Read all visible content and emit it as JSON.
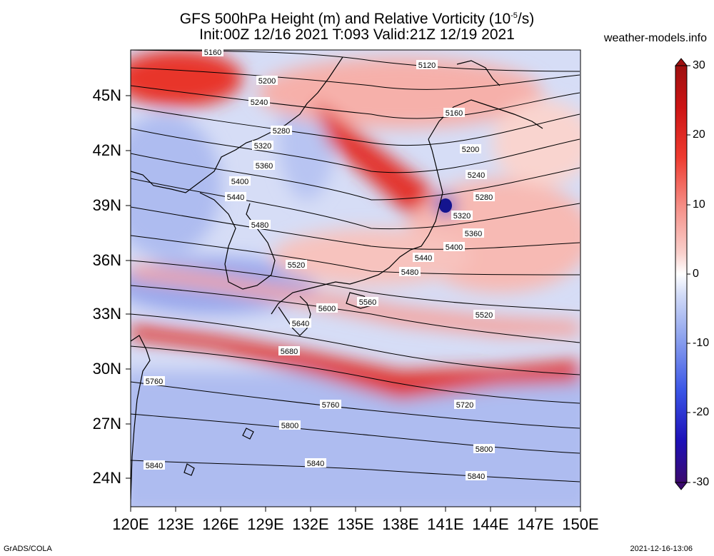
{
  "header": {
    "title_line1": "GFS 500hPa Height (m) and Relative Vorticity (10",
    "title_exp": "-5",
    "title_line1_end": "/s)",
    "title_line2": "Init:00Z 12/16 2021  T:093  Valid:21Z 12/19 2021",
    "site": "weather-models.info"
  },
  "footer": {
    "left": "GrADS/COLA",
    "right": "2021-12-16-13:06"
  },
  "axes": {
    "lat_labels": [
      "45N",
      "42N",
      "39N",
      "36N",
      "33N",
      "30N",
      "27N",
      "24N"
    ],
    "lon_labels": [
      "120E",
      "123E",
      "126E",
      "129E",
      "132E",
      "135E",
      "138E",
      "141E",
      "144E",
      "147E",
      "150E"
    ]
  },
  "colorbar": {
    "labels": [
      "30",
      "20",
      "10",
      "0",
      "-10",
      "-20",
      "-30"
    ],
    "colors": [
      "#3b0a6e",
      "#1d10b8",
      "#3a55e6",
      "#8fa4ee",
      "#d2dbf7",
      "#ffffff",
      "#f9d0cc",
      "#f59088",
      "#ee3b30",
      "#cc1414",
      "#9e1010"
    ]
  },
  "map": {
    "contour_labels": [
      "5160",
      "5120",
      "5200",
      "5240",
      "5160",
      "5280",
      "5200",
      "5320",
      "5360",
      "5240",
      "5400",
      "5280",
      "5440",
      "5320",
      "5480",
      "5360",
      "5400",
      "5520",
      "5440",
      "5480",
      "5560",
      "5600",
      "5640",
      "5520",
      "5680",
      "5760",
      "5760",
      "5720",
      "5800",
      "5800",
      "5840",
      "5840",
      "5840"
    ]
  }
}
